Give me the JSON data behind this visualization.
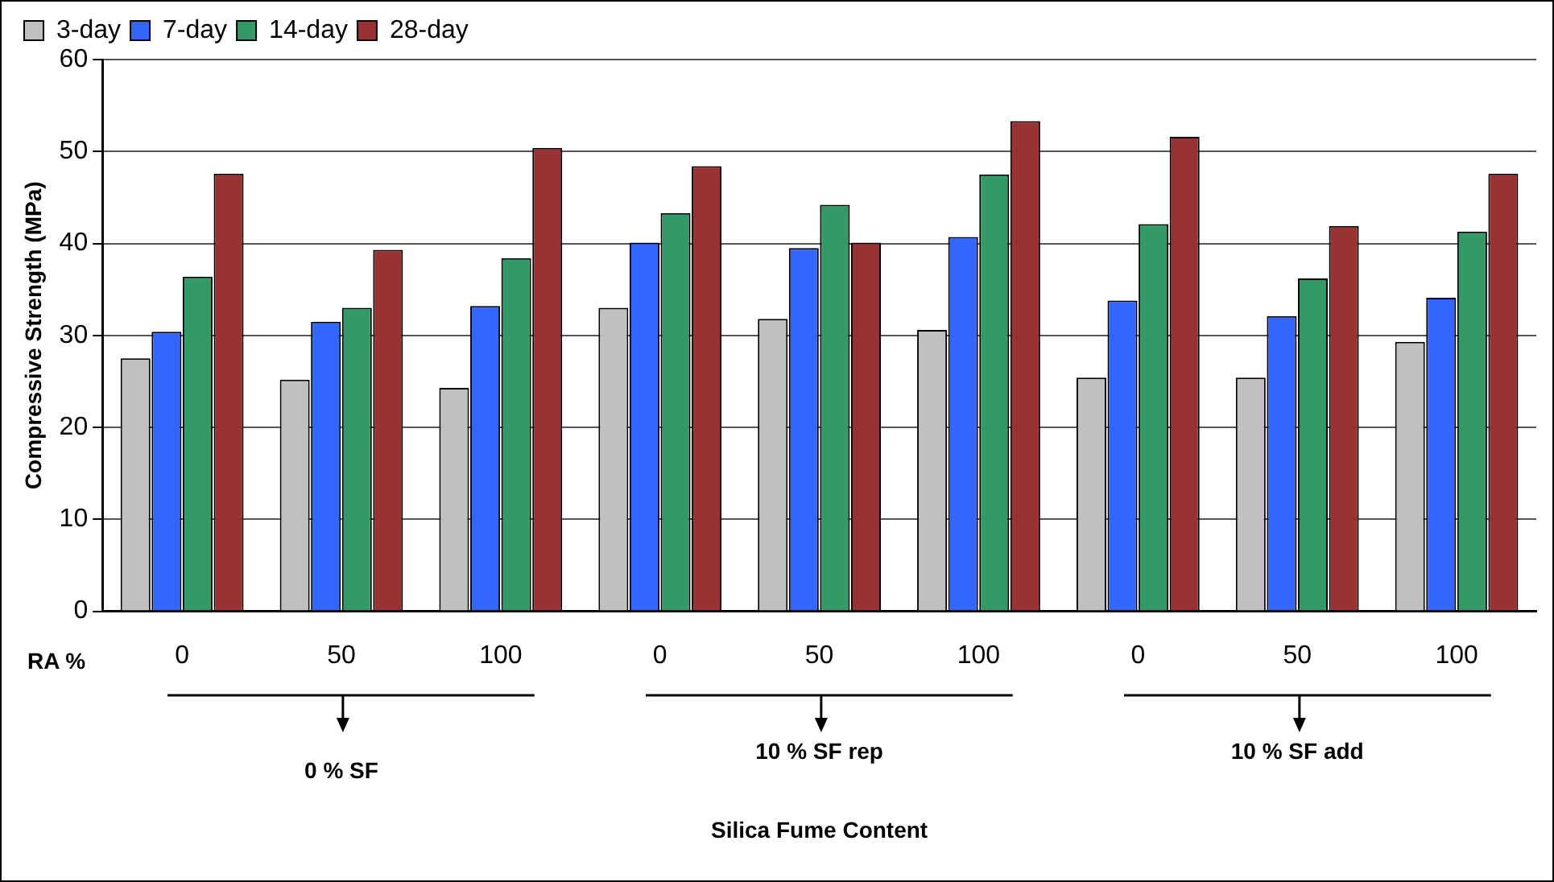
{
  "chart_data": {
    "type": "bar",
    "ylabel": "Compressive Strength (MPa)",
    "categories": [
      "0",
      "50",
      "100",
      "0",
      "50",
      "100",
      "0",
      "50",
      "100"
    ],
    "series": [
      {
        "name": "3-day",
        "color": "#c0c0c0",
        "values": [
          27.5,
          25.2,
          24.3,
          33.0,
          31.8,
          30.6,
          25.4,
          25.4,
          29.3
        ]
      },
      {
        "name": "7-day",
        "color": "#3366ff",
        "values": [
          30.4,
          31.5,
          33.2,
          40.1,
          39.5,
          40.7,
          33.8,
          32.1,
          34.1
        ]
      },
      {
        "name": "14-day",
        "color": "#339966",
        "values": [
          36.4,
          33.0,
          38.4,
          43.3,
          44.2,
          47.5,
          42.1,
          36.2,
          41.3
        ]
      },
      {
        "name": "28-day",
        "color": "#993333",
        "values": [
          47.6,
          39.3,
          50.4,
          48.4,
          40.1,
          53.3,
          51.6,
          41.9,
          47.6
        ]
      }
    ],
    "ylim": [
      0,
      60
    ],
    "yticks": [
      0,
      10,
      20,
      30,
      40,
      50,
      60
    ],
    "grid": "y",
    "legend": "top left",
    "annotations": [
      "RA %",
      "0 % SF",
      "10 % SF rep",
      "10 % SF add",
      "Silica Fume Content"
    ]
  }
}
